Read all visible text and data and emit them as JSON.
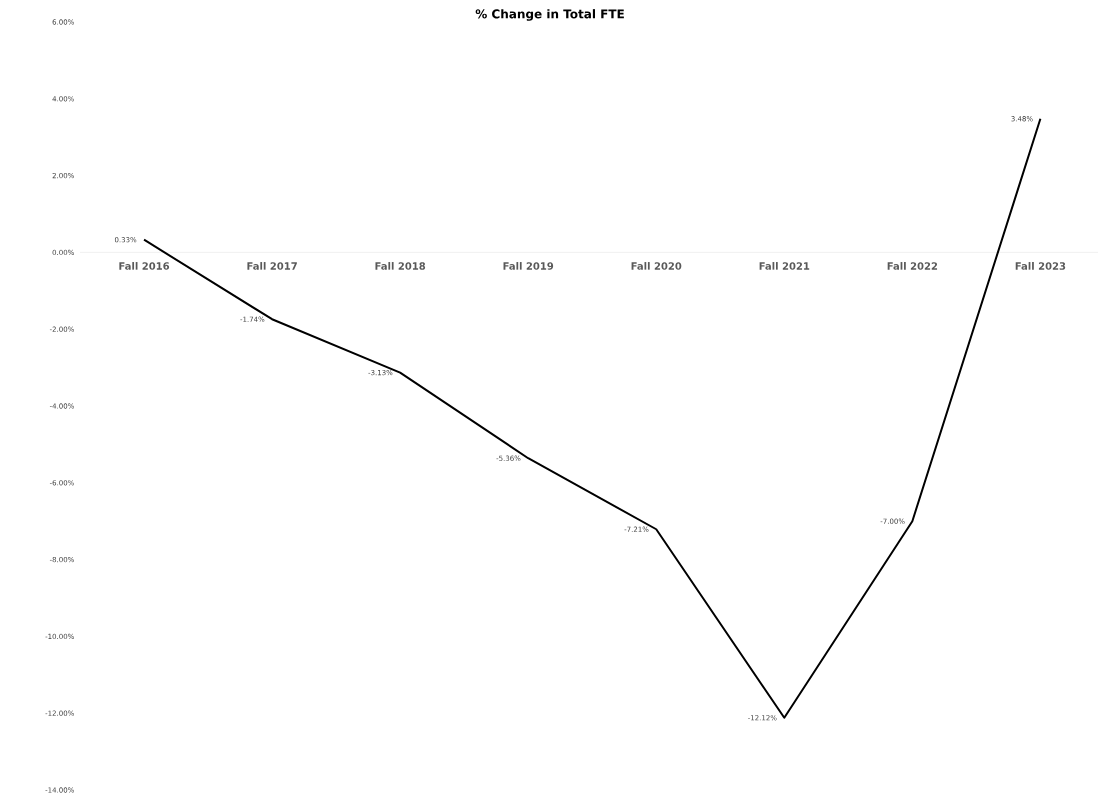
{
  "chart_data": {
    "type": "line",
    "title": "% Change in Total FTE",
    "categories": [
      "Fall 2016",
      "Fall 2017",
      "Fall 2018",
      "Fall 2019",
      "Fall 2020",
      "Fall 2021",
      "Fall 2022",
      "Fall 2023"
    ],
    "series": [
      {
        "color": "#000000",
        "values": [
          0.33,
          -1.74,
          -3.13,
          -5.36,
          -7.21,
          -12.12,
          -7.0,
          3.48
        ],
        "value_labels": [
          "0.33%",
          "-1.74%",
          "-3.13%",
          "-5.36%",
          "-7.21%",
          "-12.12%",
          "-7.00%",
          "3.48%"
        ]
      }
    ],
    "ylim": [
      -14,
      6
    ],
    "yticks": [
      {
        "value": -14,
        "label": "-14.00%"
      },
      {
        "value": -12,
        "label": "-12.00%"
      },
      {
        "value": -10,
        "label": "-10.00%"
      },
      {
        "value": -8,
        "label": "-8.00%"
      },
      {
        "value": -6,
        "label": "-6.00%"
      },
      {
        "value": -4,
        "label": "-4.00%"
      },
      {
        "value": -2,
        "label": "-2.00%"
      },
      {
        "value": 0,
        "label": "0.00%"
      },
      {
        "value": 2,
        "label": "2.00%"
      },
      {
        "value": 4,
        "label": "4.00%"
      },
      {
        "value": 6,
        "label": "6.00%"
      }
    ],
    "marker": "none",
    "line_style": "solid",
    "grid": false,
    "legend": false
  }
}
